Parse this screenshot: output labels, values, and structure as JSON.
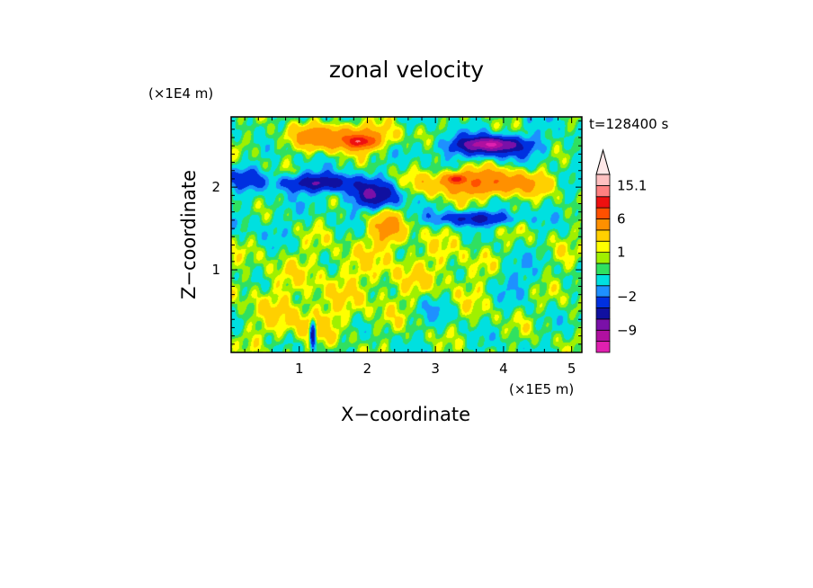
{
  "chart_data": {
    "type": "heatmap",
    "title": "zonal velocity",
    "xlabel": "X−coordinate",
    "ylabel": "Z−coordinate",
    "x_unit": "(×1E5 m)",
    "y_unit": "(×1E4 m)",
    "time_label": "t=128400 s",
    "xlim": [
      0,
      5.15
    ],
    "ylim": [
      0,
      2.85
    ],
    "x_ticks": [
      "1",
      "2",
      "3",
      "4",
      "5"
    ],
    "x_tick_values": [
      1,
      2,
      3,
      4,
      5
    ],
    "y_ticks": [
      "1",
      "2"
    ],
    "y_tick_values": [
      1,
      2
    ],
    "colorbar": {
      "labels": [
        "15.1",
        "6",
        "1",
        "−2",
        "−9"
      ],
      "label_values": [
        15.1,
        6,
        1,
        -2,
        -9
      ],
      "levels": [
        -15,
        -12,
        -9,
        -6,
        -4,
        -2,
        -1,
        0,
        0.5,
        1,
        1.5,
        3,
        6,
        9,
        12,
        15.1
      ],
      "colors": [
        "#e020b0",
        "#b010a0",
        "#7a10a8",
        "#1010a0",
        "#0030e0",
        "#1e90ff",
        "#00e0e0",
        "#30e060",
        "#a0f000",
        "#ffff00",
        "#ffd000",
        "#ff9000",
        "#ff5000",
        "#ee1010",
        "#ff8080",
        "#ffc0c0"
      ],
      "extend": "max"
    },
    "features": [
      {
        "x": 2.6,
        "z": 0.9,
        "sx": 3.2,
        "sz": 0.55,
        "u": 1.2
      },
      {
        "x": 1.0,
        "z": 0.35,
        "sx": 0.7,
        "sz": 0.28,
        "u": 1.4
      },
      {
        "x": 0.5,
        "z": 1.5,
        "sx": 0.5,
        "sz": 0.35,
        "u": -0.5
      },
      {
        "x": 4.2,
        "z": 0.9,
        "sx": 0.45,
        "sz": 0.3,
        "u": -1.8
      },
      {
        "x": 3.0,
        "z": 0.55,
        "sx": 0.35,
        "sz": 0.22,
        "u": -1.2
      },
      {
        "x": 1.6,
        "z": 2.6,
        "sx": 0.7,
        "sz": 0.15,
        "u": 5.5
      },
      {
        "x": 1.9,
        "z": 2.55,
        "sx": 0.2,
        "sz": 0.07,
        "u": 8
      },
      {
        "x": 3.7,
        "z": 2.05,
        "sx": 0.8,
        "sz": 0.15,
        "u": 6
      },
      {
        "x": 3.3,
        "z": 2.1,
        "sx": 0.12,
        "sz": 0.05,
        "u": 8
      },
      {
        "x": 2.3,
        "z": 1.5,
        "sx": 0.25,
        "sz": 0.2,
        "u": 3.5
      },
      {
        "x": 3.8,
        "z": 2.5,
        "sx": 0.6,
        "sz": 0.12,
        "u": -6.5
      },
      {
        "x": 3.8,
        "z": 2.52,
        "sx": 0.3,
        "sz": 0.06,
        "u": -6
      },
      {
        "x": 1.3,
        "z": 2.05,
        "sx": 0.55,
        "sz": 0.1,
        "u": -6
      },
      {
        "x": 2.1,
        "z": 1.9,
        "sx": 0.35,
        "sz": 0.15,
        "u": -6
      },
      {
        "x": 3.6,
        "z": 1.62,
        "sx": 0.55,
        "sz": 0.08,
        "u": -5
      },
      {
        "x": 0.2,
        "z": 2.1,
        "sx": 0.25,
        "sz": 0.12,
        "u": -3
      },
      {
        "x": 1.2,
        "z": 0.2,
        "sx": 0.04,
        "sz": 0.15,
        "u": -7
      }
    ]
  }
}
